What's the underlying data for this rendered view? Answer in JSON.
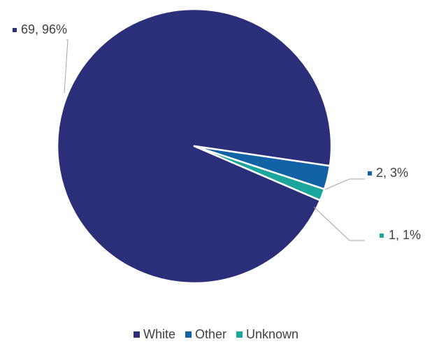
{
  "chart_data": {
    "type": "pie",
    "title": "",
    "legend_position": "bottom",
    "series": [
      {
        "category": "White",
        "value": 69,
        "percent": "96%",
        "label": "69, 96%",
        "color": "#2b2f7a"
      },
      {
        "category": "Other",
        "value": 2,
        "percent": "3%",
        "label": "2, 3%",
        "color": "#1262a6"
      },
      {
        "category": "Unknown",
        "value": 1,
        "percent": "1%",
        "label": "1, 1%",
        "color": "#1aa69a"
      }
    ]
  }
}
